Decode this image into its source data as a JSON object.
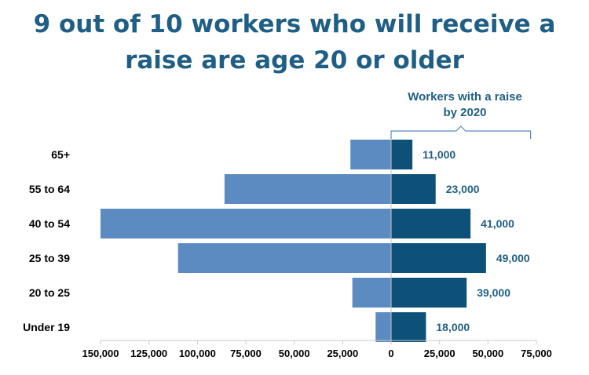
{
  "title_lines": [
    "9 out of 10 workers who will receive a",
    "raise are age 20 or older"
  ],
  "annotation": [
    "Workers with a raise",
    "by 2020"
  ],
  "colors": {
    "left_bar": "#5b8bc1",
    "right_bar": "#0e5178",
    "title": "#1f5f85",
    "axis": "#c8c8c8"
  },
  "chart_data": {
    "type": "bar",
    "orientation": "horizontal",
    "layout": "diverging",
    "categories": [
      "65+",
      "55 to 64",
      "40 to 54",
      "25 to 39",
      "20 to 25",
      "Under 19"
    ],
    "series": [
      {
        "values": [
          -21000,
          -86000,
          -150000,
          -110000,
          -20000,
          -8000
        ]
      },
      {
        "values": [
          11000,
          23000,
          41000,
          49000,
          39000,
          18000
        ]
      }
    ],
    "data_labels": [
      "11,000",
      "23,000",
      "41,000",
      "49,000",
      "39,000",
      "18,000"
    ],
    "xlim": [
      -150000,
      75000
    ],
    "x_ticks": [
      -150000,
      -125000,
      -100000,
      -75000,
      -50000,
      -25000,
      0,
      25000,
      50000,
      75000
    ],
    "x_tick_labels": [
      "150,000",
      "125,000",
      "100,000",
      "75,000",
      "50,000",
      "25,000",
      "0",
      "25,000",
      "50,000",
      "75,000"
    ],
    "bracket_range": [
      0,
      72000
    ],
    "grid": false,
    "legend": "none"
  }
}
